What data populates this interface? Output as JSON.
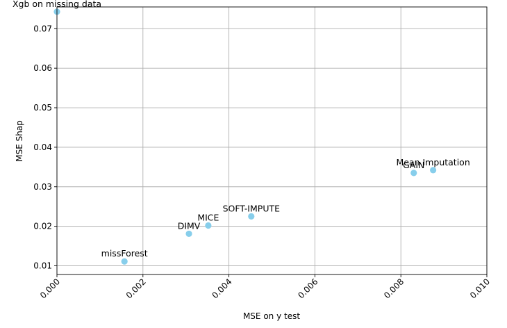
{
  "chart_data": {
    "type": "scatter",
    "title": "",
    "xlabel": "MSE on y test",
    "ylabel": "MSE Shap",
    "xlim": [
      0.0,
      0.01
    ],
    "ylim": [
      0.0078,
      0.0755
    ],
    "grid": true,
    "marker_color": "#87ceeb",
    "x_ticks": [
      0.0,
      0.002,
      0.004,
      0.006,
      0.008,
      0.01
    ],
    "x_tick_labels": [
      "0.000",
      "0.002",
      "0.004",
      "0.006",
      "0.008",
      "0.010"
    ],
    "y_ticks": [
      0.01,
      0.02,
      0.03,
      0.04,
      0.05,
      0.06,
      0.07
    ],
    "y_tick_labels": [
      "0.01",
      "0.02",
      "0.03",
      "0.04",
      "0.05",
      "0.06",
      "0.07"
    ],
    "points": [
      {
        "label": "Xgb on missing data",
        "x": 0.0,
        "y": 0.0743
      },
      {
        "label": "missForest",
        "x": 0.00157,
        "y": 0.0111
      },
      {
        "label": "DIMV",
        "x": 0.00307,
        "y": 0.0181
      },
      {
        "label": "MICE",
        "x": 0.00352,
        "y": 0.0202
      },
      {
        "label": "SOFT-IMPUTE",
        "x": 0.00452,
        "y": 0.0225
      },
      {
        "label": "GAIN",
        "x": 0.0083,
        "y": 0.0335
      },
      {
        "label": "Mean Imputation",
        "x": 0.00875,
        "y": 0.0342
      }
    ]
  }
}
